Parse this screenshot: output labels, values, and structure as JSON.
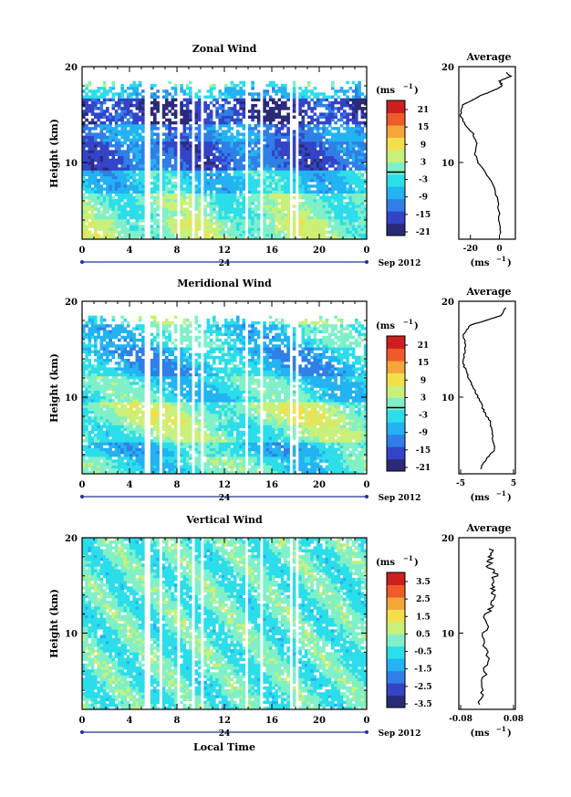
{
  "panels": [
    {
      "key": "zonal",
      "title": "Zonal Wind",
      "ylabel": "Height (km)",
      "ylim": [
        2,
        20
      ],
      "yticks": [
        "20",
        "10"
      ],
      "xticks": [
        "0",
        "4",
        "8",
        "12",
        "16",
        "20",
        "0"
      ],
      "date_mark": "24",
      "date_label": "Sep 2012",
      "unit_label": "(ms",
      "unit_sup": "−1",
      "colorbar": {
        "ticks": [
          "21",
          "15",
          "9",
          "3",
          "-3",
          "-9",
          "-15",
          "-21"
        ],
        "range": [
          -24,
          24
        ]
      },
      "avg": {
        "title": "Average",
        "yticks": [
          "20",
          "10"
        ],
        "xticks": [
          "-20",
          "0"
        ],
        "xlim": [
          -28,
          11
        ],
        "unit_label": "(ms",
        "unit_sup": "−1"
      }
    },
    {
      "key": "meridional",
      "title": "Meridional Wind",
      "ylabel": "Height (km)",
      "ylim": [
        2,
        20
      ],
      "yticks": [
        "20",
        "10"
      ],
      "xticks": [
        "0",
        "4",
        "8",
        "12",
        "16",
        "20",
        "0"
      ],
      "date_mark": "24",
      "date_label": "Sep 2012",
      "unit_label": "(ms",
      "unit_sup": "−1",
      "colorbar": {
        "ticks": [
          "21",
          "15",
          "9",
          "3",
          "-3",
          "-9",
          "-15",
          "-21"
        ],
        "range": [
          -24,
          24
        ]
      },
      "avg": {
        "title": "Average",
        "yticks": [
          "20",
          "10"
        ],
        "xticks": [
          "-5",
          "5"
        ],
        "xlim": [
          -5,
          5
        ],
        "unit_label": "(ms",
        "unit_sup": "−1"
      }
    },
    {
      "key": "vertical",
      "title": "Vertical Wind",
      "ylabel": "Height (km)",
      "ylim": [
        2,
        20
      ],
      "yticks": [
        "20",
        "10"
      ],
      "xticks": [
        "0",
        "4",
        "8",
        "12",
        "16",
        "20",
        "0"
      ],
      "date_mark": "24",
      "date_label": "Sep 2012",
      "unit_label": "(ms",
      "unit_sup": "−1",
      "colorbar": {
        "ticks": [
          "3.5",
          "2.5",
          "1.5",
          "0.5",
          "-0.5",
          "-1.5",
          "-2.5",
          "-3.5"
        ],
        "range": [
          -4,
          4
        ]
      },
      "avg": {
        "title": "Average",
        "yticks": [
          "20",
          "10"
        ],
        "xticks": [
          "-0.08",
          "0.08"
        ],
        "xlim": [
          -0.08,
          0.08
        ],
        "unit_label": "(ms",
        "unit_sup": "−1"
      }
    }
  ],
  "xlabel": "Local Time",
  "colors": {
    "colormap": [
      "#2a2a78",
      "#3344c8",
      "#2f7fe6",
      "#23b2f2",
      "#2cddea",
      "#7ff0c8",
      "#c8f07a",
      "#f2e04a",
      "#f5a53a",
      "#ee5a2a",
      "#cc2020"
    ]
  },
  "chart_data": [
    {
      "type": "heatmap",
      "title": "Zonal Wind",
      "xlabel": "",
      "ylabel": "Height (km)",
      "x": "local time (h), 24 Sep 2012",
      "xlim": [
        0,
        24
      ],
      "ylim": [
        2,
        20
      ],
      "colorbar_unit": "ms-1",
      "colorbar_ticks": [
        21,
        15,
        9,
        3,
        -3,
        -9,
        -15,
        -21
      ],
      "data_gaps_x": [
        5.2,
        5.6,
        6.6,
        8.0,
        9.2,
        10.0,
        13.7,
        15.0,
        17.5,
        18.0
      ],
      "average_profile": {
        "height": [
          2.5,
          4,
          6,
          8,
          10,
          11,
          12,
          13,
          14,
          15,
          16,
          17,
          17.5,
          18,
          18.5,
          19,
          19.5
        ],
        "value": [
          0.5,
          0,
          -1,
          -5,
          -15,
          -17,
          -16,
          -18,
          -24,
          -27,
          -25,
          -13,
          -4,
          2,
          0,
          8,
          4
        ]
      }
    },
    {
      "type": "heatmap",
      "title": "Meridional Wind",
      "xlabel": "",
      "ylabel": "Height (km)",
      "xlim": [
        0,
        24
      ],
      "ylim": [
        2,
        20
      ],
      "colorbar_unit": "ms-1",
      "colorbar_ticks": [
        21,
        15,
        9,
        3,
        -3,
        -9,
        -15,
        -21
      ],
      "average_profile": {
        "height": [
          2.5,
          3.5,
          4.5,
          5.5,
          6.5,
          7.5,
          8.5,
          9.5,
          10.5,
          11.5,
          12.5,
          13.5,
          14.5,
          15.5,
          16.5,
          17.5,
          18.5,
          19.5
        ],
        "value": [
          -1.2,
          -0.2,
          1.3,
          1.0,
          0.8,
          0.5,
          -0.5,
          -1.2,
          -2.0,
          -2.8,
          -3.6,
          -4.2,
          -4.0,
          -3.8,
          -4.2,
          -3.0,
          2.5,
          3.5
        ]
      }
    },
    {
      "type": "heatmap",
      "title": "Vertical Wind",
      "xlabel": "Local Time",
      "ylabel": "Height (km)",
      "xlim": [
        0,
        24
      ],
      "ylim": [
        2,
        20
      ],
      "colorbar_unit": "ms-1",
      "colorbar_ticks": [
        3.5,
        2.5,
        1.5,
        0.5,
        -0.5,
        -1.5,
        -2.5,
        -3.5
      ],
      "average_profile": {
        "height": [
          2.5,
          4,
          6,
          8,
          10,
          12,
          13,
          14,
          15,
          16,
          17,
          18,
          19
        ],
        "value": [
          -0.03,
          -0.01,
          -0.01,
          0.0,
          -0.005,
          0.0,
          0.015,
          0.02,
          0.01,
          0.025,
          0.005,
          0.01,
          0.01
        ]
      }
    }
  ]
}
